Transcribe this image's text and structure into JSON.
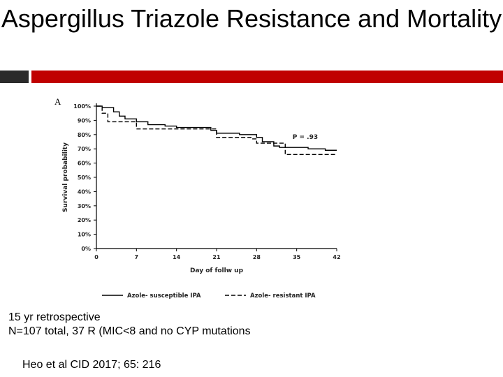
{
  "slide": {
    "title": "Aspergillus Triazole Resistance and Mortality",
    "panel_letter": "A",
    "notes": [
      "15 yr retrospective",
      "N=107 total, 37 R (MIC<8 and no CYP mutations"
    ],
    "citation": "Heo et al CID 2017; 65: 216",
    "colors": {
      "accent_red": "#c00000",
      "dark_block": "#2b2b2b"
    }
  },
  "chart_data": {
    "type": "line",
    "subtype": "kaplan-meier-step",
    "xlabel": "Day of follw up",
    "ylabel": "Survival probability",
    "xlim": [
      0,
      42
    ],
    "ylim": [
      0,
      100
    ],
    "x_ticks": [
      0,
      7,
      14,
      21,
      28,
      35,
      42
    ],
    "y_ticks": [
      0,
      10,
      20,
      30,
      40,
      50,
      60,
      70,
      80,
      90,
      100
    ],
    "y_tick_labels": [
      "0%",
      "10%",
      "20%",
      "30%",
      "40%",
      "50%",
      "60%",
      "70%",
      "80%",
      "90%",
      "100%"
    ],
    "annotation": "P = .93",
    "legend_position": "bottom",
    "grid": false,
    "series": [
      {
        "name": "Azole- susceptible IPA",
        "style": "solid",
        "steps": [
          [
            0,
            100
          ],
          [
            1,
            100
          ],
          [
            1,
            99
          ],
          [
            3,
            99
          ],
          [
            3,
            96
          ],
          [
            4,
            96
          ],
          [
            4,
            93
          ],
          [
            5,
            93
          ],
          [
            5,
            91
          ],
          [
            7,
            91
          ],
          [
            7,
            89
          ],
          [
            9,
            89
          ],
          [
            9,
            87
          ],
          [
            12,
            87
          ],
          [
            12,
            86
          ],
          [
            14,
            86
          ],
          [
            14,
            85
          ],
          [
            20,
            85
          ],
          [
            20,
            83
          ],
          [
            21,
            83
          ],
          [
            21,
            81
          ],
          [
            25,
            81
          ],
          [
            25,
            80
          ],
          [
            28,
            80
          ],
          [
            28,
            78
          ],
          [
            29,
            78
          ],
          [
            29,
            75
          ],
          [
            31,
            75
          ],
          [
            31,
            72
          ],
          [
            32,
            72
          ],
          [
            32,
            71
          ],
          [
            37,
            71
          ],
          [
            37,
            70
          ],
          [
            40,
            70
          ],
          [
            40,
            69
          ],
          [
            42,
            69
          ]
        ]
      },
      {
        "name": "Azole- resistant IPA",
        "style": "dashed",
        "steps": [
          [
            0,
            100
          ],
          [
            1,
            100
          ],
          [
            1,
            95
          ],
          [
            2,
            95
          ],
          [
            2,
            89
          ],
          [
            7,
            89
          ],
          [
            7,
            84
          ],
          [
            21,
            84
          ],
          [
            21,
            78
          ],
          [
            27,
            78
          ],
          [
            27,
            77
          ],
          [
            28,
            77
          ],
          [
            28,
            74
          ],
          [
            33,
            74
          ],
          [
            33,
            66
          ],
          [
            42,
            66
          ]
        ]
      }
    ]
  }
}
